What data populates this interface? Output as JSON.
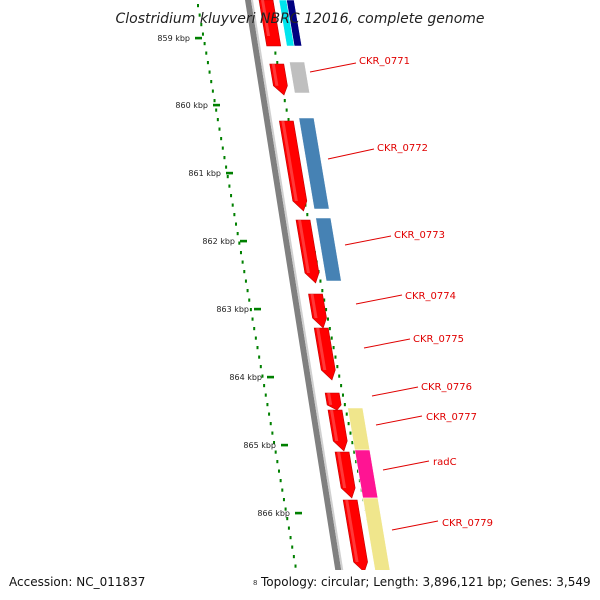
{
  "title": "Clostridium kluyveri NBRC 12016, complete genome",
  "accession_text": "Accession: NC_011837",
  "info_prefix": "8",
  "info_text": "Topology: circular; Length: 3,896,121 bp; Genes: 3,549",
  "ticks": [
    {
      "label": "859 kbp"
    },
    {
      "label": "860 kbp"
    },
    {
      "label": "861 kbp"
    },
    {
      "label": "862 kbp"
    },
    {
      "label": "863 kbp"
    },
    {
      "label": "864 kbp"
    },
    {
      "label": "865 kbp"
    },
    {
      "label": "866 kbp"
    }
  ],
  "genes": [
    {
      "label": "",
      "color": "#ff0000",
      "cog_colors": [
        "#00e5ee",
        "#000080"
      ]
    },
    {
      "label": "CKR_0771",
      "color": "#ff0000",
      "cog_colors": [
        "#bfbfbf"
      ]
    },
    {
      "label": "CKR_0772",
      "color": "#ff0000",
      "cog_colors": [
        "#4682b4"
      ]
    },
    {
      "label": "CKR_0773",
      "color": "#ff0000",
      "cog_colors": [
        "#4682b4"
      ]
    },
    {
      "label": "CKR_0774",
      "color": "#ff0000",
      "cog_colors": []
    },
    {
      "label": "CKR_0775",
      "color": "#ff0000",
      "cog_colors": []
    },
    {
      "label": "CKR_0776",
      "color": "#ff0000",
      "cog_colors": []
    },
    {
      "label": "CKR_0777",
      "color": "#ff0000",
      "cog_colors": [
        "#f0e68c"
      ]
    },
    {
      "label": "radC",
      "color": "#ff0000",
      "cog_colors": [
        "#ff1493"
      ]
    },
    {
      "label": "CKR_0779",
      "color": "#ff0000",
      "cog_colors": [
        "#f0e68c"
      ]
    },
    {
      "label": "",
      "color": "#ff0000",
      "cog_colors": [
        "#6b8e23"
      ]
    }
  ],
  "colors": {
    "backbone": "#808080",
    "tick_mark": "#008000",
    "gc_dots": "#008000",
    "label_line": "#e00000"
  }
}
